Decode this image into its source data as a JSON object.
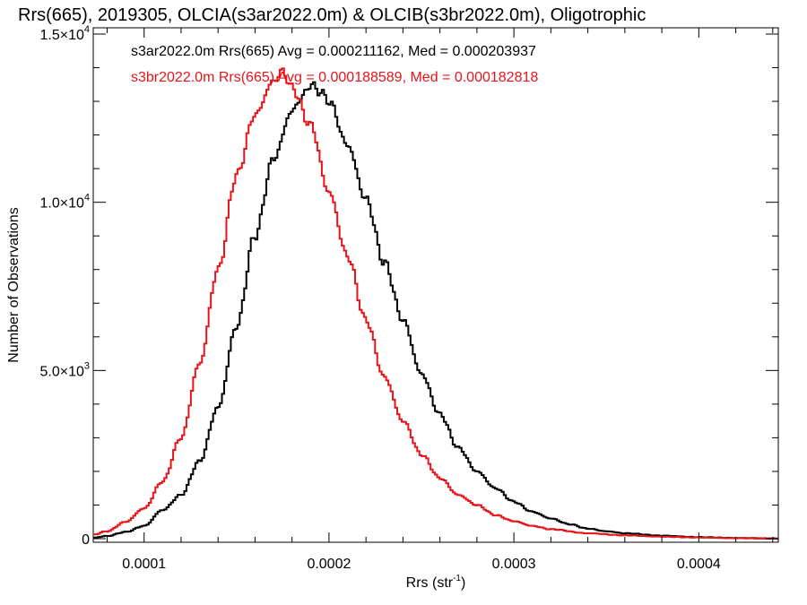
{
  "chart_data": {
    "type": "line",
    "title": "Rrs(665), 2019305, OLCIA(s3ar2022.0m) & OLCIB(s3br2022.0m), Oligotrophic",
    "xlabel": "Rrs (str",
    "xlabel_sup": "-1",
    "xlabel_end": ")",
    "ylabel": "Number of Observations",
    "xlim": [
      7.25e-05,
      0.000443
    ],
    "ylim": [
      0,
      15000
    ],
    "x_ticks": [
      {
        "value": 0.0001,
        "label": "0.0001"
      },
      {
        "value": 0.0002,
        "label": "0.0002"
      },
      {
        "value": 0.0003,
        "label": "0.0003"
      },
      {
        "value": 0.0004,
        "label": "0.0004"
      }
    ],
    "y_ticks": [
      {
        "value": 0,
        "label": "0",
        "sup": ""
      },
      {
        "value": 5000,
        "label": "5.0×10",
        "sup": "3"
      },
      {
        "value": 10000,
        "label": "1.0×10",
        "sup": "4"
      },
      {
        "value": 15000,
        "label": "1.5×10",
        "sup": "4"
      }
    ],
    "grid": false,
    "series": [
      {
        "name": "s3ar2022.0m Rrs(665)",
        "label": "s3ar2022.0m Rrs(665) Avg = 0.000211162, Med = 0.000203937",
        "color": "#000000",
        "x": [
          7.25e-05,
          8e-05,
          9e-05,
          0.0001,
          0.00011,
          0.00012,
          0.00013,
          0.00014,
          0.00015,
          0.00016,
          0.00017,
          0.00018,
          0.000185,
          0.00019,
          0.000195,
          0.0002,
          0.00021,
          0.00022,
          0.00023,
          0.00024,
          0.00025,
          0.00026,
          0.00027,
          0.00028,
          0.00029,
          0.0003,
          0.00031,
          0.00032,
          0.00033,
          0.00034,
          0.00035,
          0.00036,
          0.00038,
          0.0004,
          0.00042,
          0.000443
        ],
        "y": [
          30,
          80,
          200,
          380,
          850,
          1300,
          2300,
          3900,
          6300,
          9000,
          11300,
          12700,
          13100,
          13500,
          13300,
          13000,
          11700,
          10100,
          8200,
          6500,
          4900,
          3700,
          2700,
          2000,
          1500,
          1100,
          800,
          600,
          430,
          300,
          220,
          160,
          90,
          45,
          20,
          5
        ]
      },
      {
        "name": "s3br2022.0m Rrs(665)",
        "label": "s3br2022.0m Rrs(665) Avg = 0.000188589, Med = 0.000182818",
        "color": "#e8141a",
        "x": [
          7.25e-05,
          8e-05,
          9e-05,
          0.0001,
          0.00011,
          0.00012,
          0.00013,
          0.00014,
          0.00015,
          0.00016,
          0.00017,
          0.000175,
          0.00018,
          0.00019,
          0.0002,
          0.00021,
          0.00022,
          0.00023,
          0.00024,
          0.00025,
          0.00026,
          0.00027,
          0.00028,
          0.00029,
          0.0003,
          0.00031,
          0.00032,
          0.00034,
          0.00036,
          0.00038,
          0.0004,
          0.00042,
          0.000443
        ],
        "y": [
          120,
          220,
          500,
          900,
          1700,
          3000,
          5200,
          8000,
          10800,
          12600,
          13600,
          13900,
          13400,
          12300,
          10300,
          8400,
          6500,
          4800,
          3500,
          2500,
          1800,
          1300,
          1000,
          700,
          520,
          380,
          280,
          160,
          100,
          60,
          35,
          15,
          5
        ]
      }
    ],
    "legend": "top-left, inside plot"
  }
}
